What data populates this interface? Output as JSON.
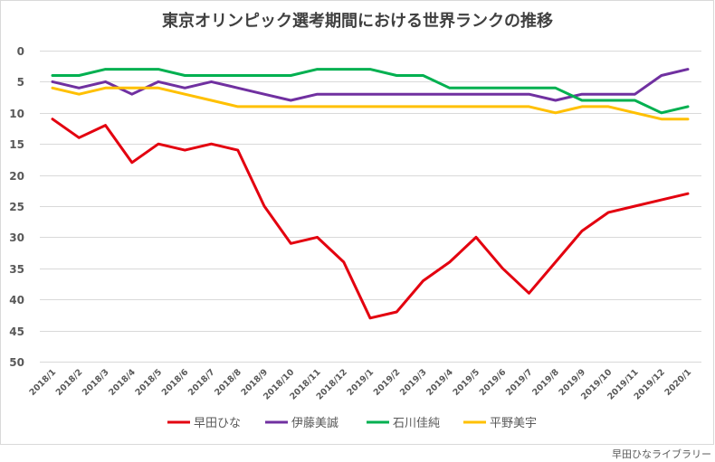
{
  "chart_data": {
    "type": "line",
    "title": "東京オリンピック選考期間における世界ランクの推移",
    "xlabel": "",
    "ylabel": "",
    "ylim": [
      0,
      50
    ],
    "y_inverted": true,
    "yticks": [
      0,
      5,
      10,
      15,
      20,
      25,
      30,
      35,
      40,
      45,
      50
    ],
    "grid": true,
    "legend": "bottom",
    "categories": [
      "2018/1",
      "2018/2",
      "2018/3",
      "2018/4",
      "2018/5",
      "2018/6",
      "2018/7",
      "2018/8",
      "2018/9",
      "2018/10",
      "2018/11",
      "2018/12",
      "2019/1",
      "2019/2",
      "2019/3",
      "2019/4",
      "2019/5",
      "2019/6",
      "2019/7",
      "2019/8",
      "2019/9",
      "2019/10",
      "2019/11",
      "2019/12",
      "2020/1"
    ],
    "series": [
      {
        "name": "早田ひな",
        "color": "#e3000f",
        "values": [
          11,
          14,
          12,
          18,
          15,
          16,
          15,
          16,
          25,
          31,
          30,
          34,
          43,
          42,
          37,
          34,
          30,
          35,
          39,
          34,
          29,
          26,
          25,
          24,
          23
        ]
      },
      {
        "name": "伊藤美誠",
        "color": "#7030a0",
        "values": [
          5,
          6,
          5,
          7,
          5,
          6,
          5,
          6,
          7,
          8,
          7,
          7,
          7,
          7,
          7,
          7,
          7,
          7,
          7,
          8,
          7,
          7,
          7,
          4,
          3
        ]
      },
      {
        "name": "石川佳純",
        "color": "#00b050",
        "values": [
          4,
          4,
          3,
          3,
          3,
          4,
          4,
          4,
          4,
          4,
          3,
          3,
          3,
          4,
          4,
          6,
          6,
          6,
          6,
          6,
          8,
          8,
          8,
          10,
          9
        ]
      },
      {
        "name": "平野美宇",
        "color": "#ffc000",
        "values": [
          6,
          7,
          6,
          6,
          6,
          7,
          8,
          9,
          9,
          9,
          9,
          9,
          9,
          9,
          9,
          9,
          9,
          9,
          9,
          10,
          9,
          9,
          10,
          11,
          11
        ]
      }
    ]
  },
  "footer": {
    "credit": "早田ひなライブラリー"
  }
}
